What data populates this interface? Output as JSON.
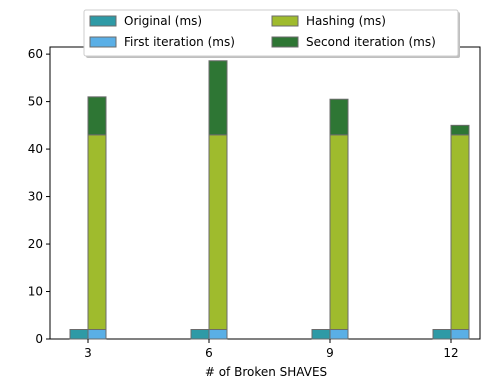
{
  "chart_data": {
    "type": "bar",
    "stacked": true,
    "categories": [
      "3",
      "6",
      "9",
      "12"
    ],
    "xlabel": "# of Broken SHAVES",
    "ylabel": "",
    "ylim": [
      0,
      61.5
    ],
    "yticks": [
      0,
      10,
      20,
      30,
      40,
      50,
      60
    ],
    "grid": false,
    "legend_position": "top, above plot",
    "series": [
      {
        "name": "Original (ms)",
        "color": "#2e9aa6",
        "stack": "left",
        "values": [
          2.0,
          2.0,
          2.0,
          2.0
        ]
      },
      {
        "name": "First iteration (ms)",
        "color": "#5aafe6",
        "stack": "right",
        "values": [
          2.0,
          2.0,
          2.0,
          2.0
        ]
      },
      {
        "name": "Hashing (ms)",
        "color": "#9fbb2d",
        "stack": "right",
        "values": [
          41.0,
          41.0,
          41.0,
          41.0
        ]
      },
      {
        "name": "Second iteration (ms)",
        "color": "#2e7634",
        "stack": "right",
        "values": [
          8.0,
          15.6,
          7.5,
          2.0
        ]
      }
    ]
  }
}
